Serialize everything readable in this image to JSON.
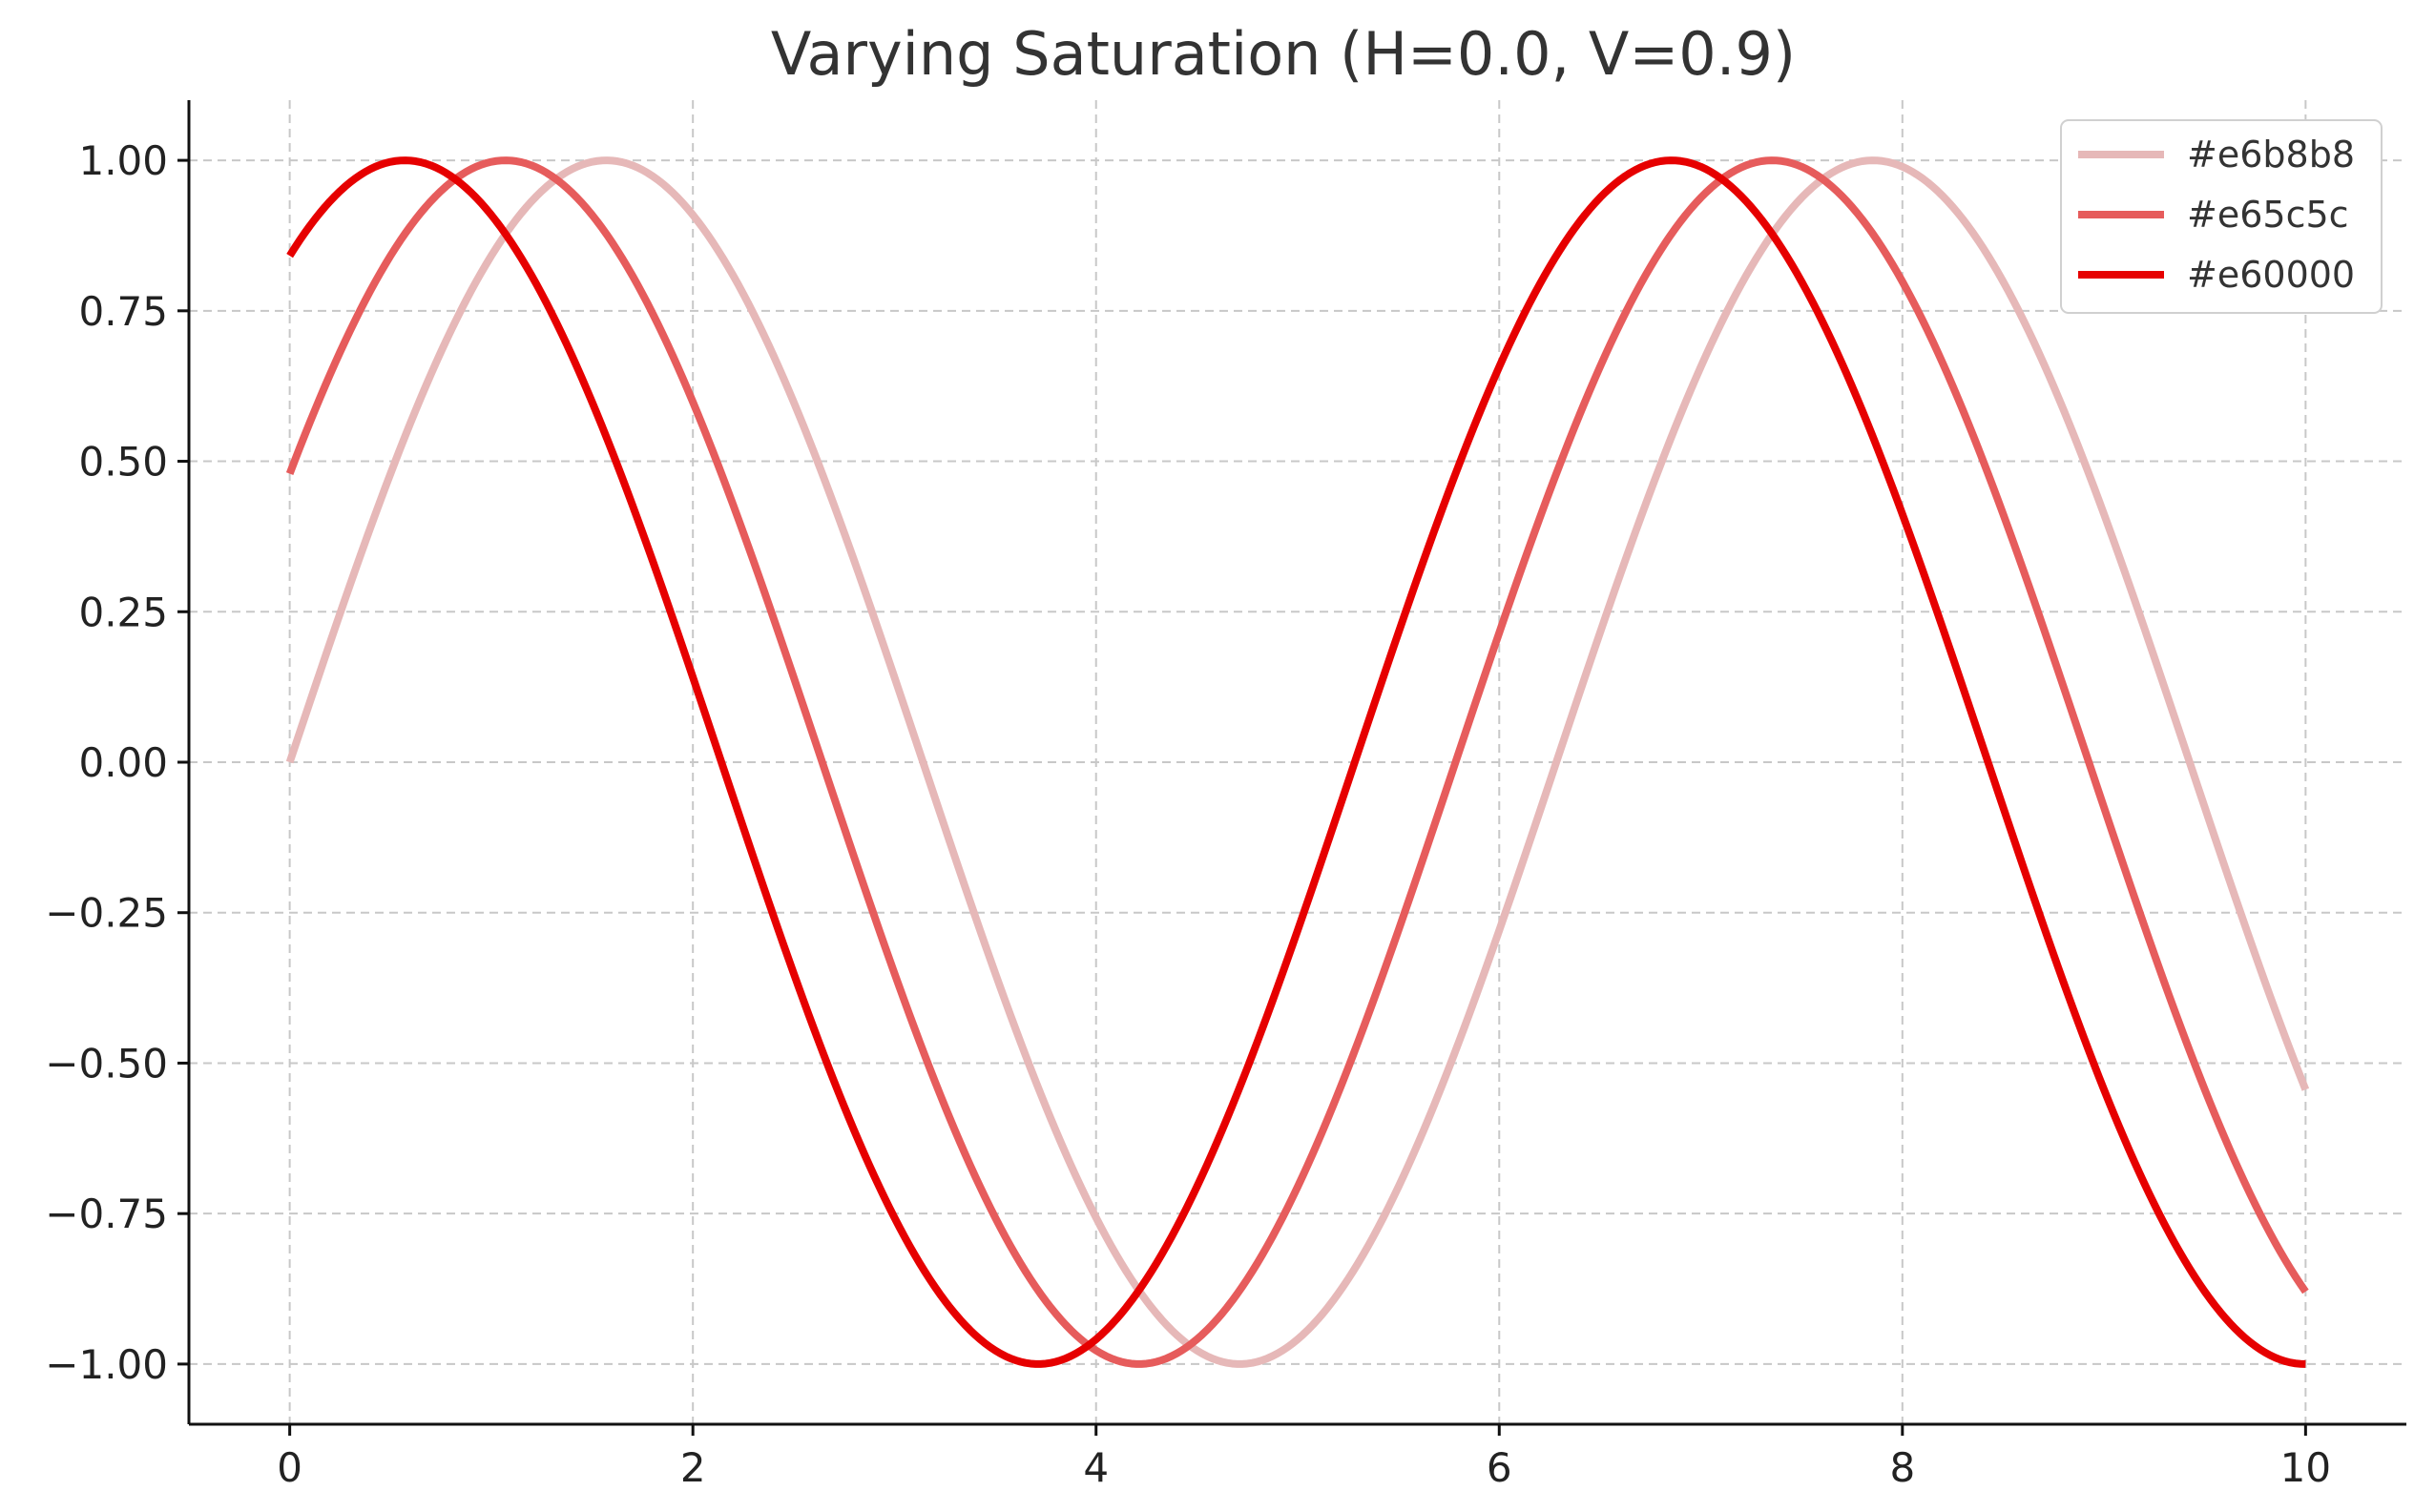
{
  "chart_data": {
    "type": "line",
    "title": "Varying Saturation (H=0.0, V=0.9)",
    "xlabel": "",
    "ylabel": "",
    "xlim": [
      -0.5,
      10.5
    ],
    "ylim": [
      -1.1,
      1.1
    ],
    "xticks": [
      0,
      2,
      4,
      6,
      8,
      10
    ],
    "xtick_labels": [
      "0",
      "2",
      "4",
      "6",
      "8",
      "10"
    ],
    "yticks": [
      1.0,
      0.75,
      0.5,
      0.25,
      0.0,
      -0.25,
      -0.5,
      -0.75,
      -1.0
    ],
    "ytick_labels": [
      "1.00",
      "0.75",
      "0.50",
      "0.25",
      "0.00",
      "−0.25",
      "−0.50",
      "−0.75",
      "−1.00"
    ],
    "grid": true,
    "legend_position": "top-right",
    "series": [
      {
        "name": "#e6b8b8",
        "color": "#e6b8b8",
        "function": "sin(x)",
        "x_range": [
          0,
          10
        ]
      },
      {
        "name": "#e65c5c",
        "color": "#e65c5c",
        "function": "sin(x + 0.5)",
        "x_range": [
          0,
          10
        ]
      },
      {
        "name": "#e60000",
        "color": "#e60000",
        "function": "sin(x + 1.0)",
        "x_range": [
          0,
          10
        ]
      }
    ]
  }
}
